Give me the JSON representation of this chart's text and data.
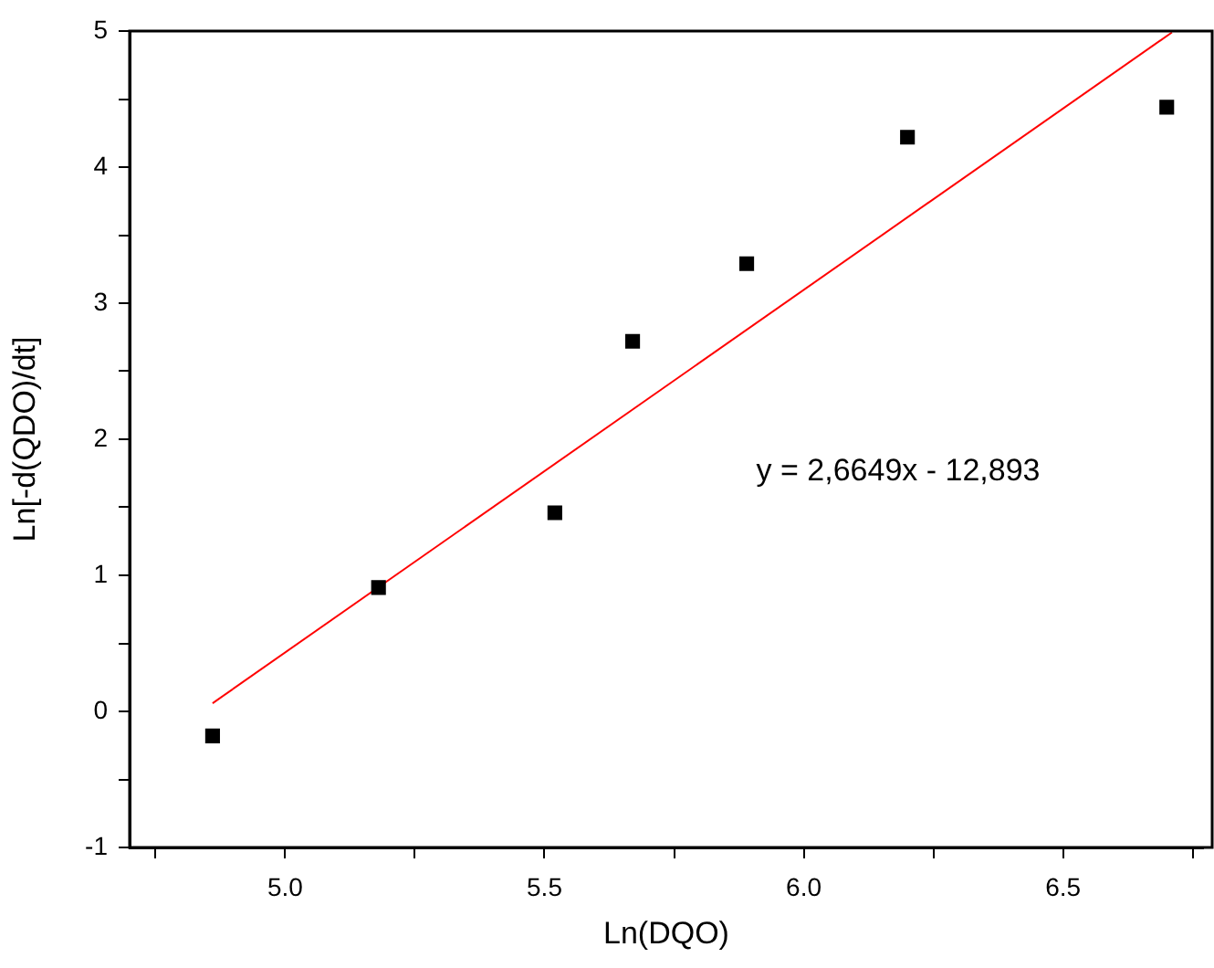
{
  "chart_data": {
    "type": "scatter",
    "xlabel": "Ln(DQO)",
    "ylabel": "Ln[-d(QDO)/dt]",
    "xlim": [
      4.7,
      6.77
    ],
    "ylim": [
      -1,
      5
    ],
    "xticks": [
      {
        "value": 4.75,
        "label": null
      },
      {
        "value": 5,
        "label": "5.0"
      },
      {
        "value": 5.25,
        "label": null
      },
      {
        "value": 5.5,
        "label": "5.5"
      },
      {
        "value": 5.75,
        "label": null
      },
      {
        "value": 6,
        "label": "6.0"
      },
      {
        "value": 6.25,
        "label": null
      },
      {
        "value": 6.5,
        "label": "6.5"
      },
      {
        "value": 6.75,
        "label": null
      }
    ],
    "yticks": [
      -1,
      {
        "value": -0.5,
        "label": null
      },
      0,
      {
        "value": 0.5,
        "label": null
      },
      1,
      {
        "value": 1.5,
        "label": null
      },
      2,
      {
        "value": 2.5,
        "label": null
      },
      3,
      {
        "value": 3.5,
        "label": null
      },
      4,
      {
        "value": 4.5,
        "label": null
      },
      5
    ],
    "marker": "square",
    "grid": false,
    "legend": false,
    "series": [
      {
        "color": "#000000",
        "x": [
          4.86,
          5.18,
          5.52,
          5.67,
          5.89,
          6.2,
          6.7
        ],
        "values": [
          -0.18,
          0.91,
          1.46,
          2.72,
          3.29,
          4.22,
          4.44
        ]
      },
      {
        "type": "line",
        "color": "#ff0000",
        "line_style": "solid",
        "marker": "none",
        "x": [
          4.86,
          6.71
        ],
        "values": [
          0.06,
          4.99
        ]
      }
    ],
    "annotations": [
      "y = 2,6649x - 12,893"
    ]
  }
}
